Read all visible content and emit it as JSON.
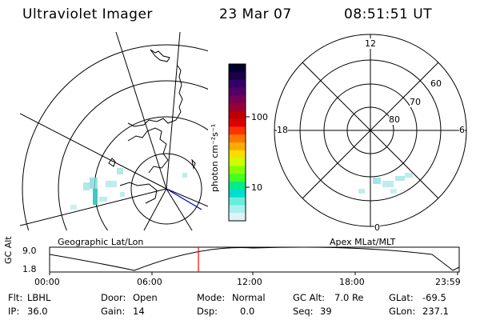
{
  "header": {
    "instrument": "Ultraviolet Imager",
    "date": "23 Mar 07",
    "time": "08:51:51 UT"
  },
  "colorbar": {
    "unit_label": "photon cm⁻²s⁻¹",
    "ticks": [
      "100",
      "10"
    ],
    "colors": [
      "#000033",
      "#1a0044",
      "#330066",
      "#550066",
      "#770055",
      "#990033",
      "#bb0000",
      "#dd0000",
      "#ff3300",
      "#ff7700",
      "#ffaa00",
      "#ffdd00",
      "#ccff00",
      "#88ff00",
      "#44ff22",
      "#00ee88",
      "#00ddcc",
      "#66eedd",
      "#aaf0f0",
      "#ddf5f8"
    ]
  },
  "left_map": {
    "label": "Geographic Lat/Lon",
    "aurora_color": "#7fd9dc"
  },
  "right_map": {
    "label": "Apex MLat/MLT",
    "mlt_labels": {
      "top": "12",
      "left": "18",
      "right": "6",
      "bottom": "0"
    },
    "lat_labels": [
      "60",
      "70",
      "80"
    ],
    "aurora_color": "#7fd9dc"
  },
  "altitude_plot": {
    "ylabel": "GC Alt",
    "y_ticks": [
      "9.0",
      "1.8"
    ],
    "x_ticks": [
      "00:00",
      "06:00",
      "12:00",
      "18:00",
      "23:59"
    ],
    "marker_color": "#ff0000"
  },
  "info": {
    "flt_label": "Flt:",
    "flt_value": "LBHL",
    "ip_label": "IP:",
    "ip_value": "36.0",
    "door_label": "Door:",
    "door_value": "Open",
    "gain_label": "Gain:",
    "gain_value": "14",
    "mode_label": "Mode:",
    "mode_value": "Normal",
    "dsp_label": "Dsp:",
    "dsp_value": "0.0",
    "gcalt_label": "GC Alt:",
    "gcalt_value": "7.0 Re",
    "seq_label": "Seq:",
    "seq_value": "39",
    "glat_label": "GLat:",
    "glat_value": "-69.5",
    "glon_label": "GLon:",
    "glon_value": "237.1"
  }
}
